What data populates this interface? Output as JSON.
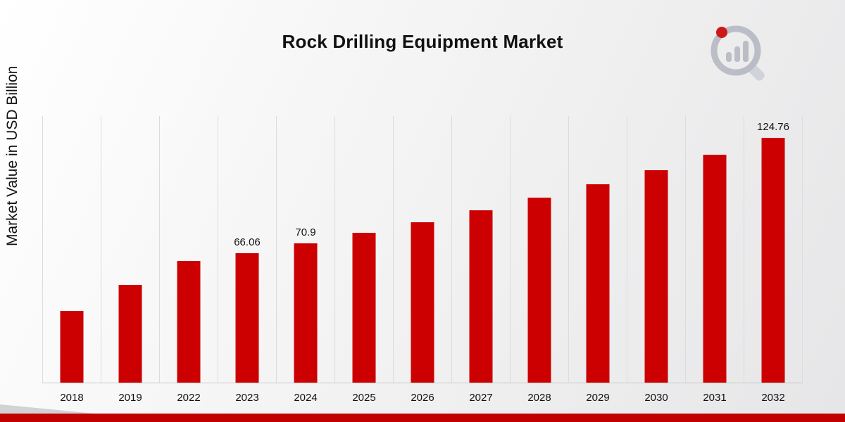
{
  "title": "Rock Drilling Equipment Market",
  "y_axis_label": "Market Value in USD Billion",
  "colors": {
    "bar": "#cc0001",
    "footer_strip": "#c00001",
    "gridline": "#dcdcdc",
    "logo_gray": "#b6b9c2",
    "logo_red": "#cc0001"
  },
  "chart_data": {
    "type": "bar",
    "title": "Rock Drilling Equipment Market",
    "xlabel": "",
    "ylabel": "Market Value in USD Billion",
    "legend": "none",
    "grid": "vertical-only",
    "ylim": [
      0,
      136
    ],
    "categories": [
      "2018",
      "2019",
      "2022",
      "2023",
      "2024",
      "2025",
      "2026",
      "2027",
      "2028",
      "2029",
      "2030",
      "2031",
      "2032"
    ],
    "values": [
      36.5,
      49.7,
      61.9,
      66.06,
      70.9,
      76.4,
      81.9,
      88.0,
      94.3,
      101.2,
      108.5,
      116.3,
      124.76
    ],
    "data_labels": [
      "",
      "",
      "",
      "66.06",
      "70.9",
      "",
      "",
      "",
      "",
      "",
      "",
      "",
      "124.76"
    ]
  }
}
